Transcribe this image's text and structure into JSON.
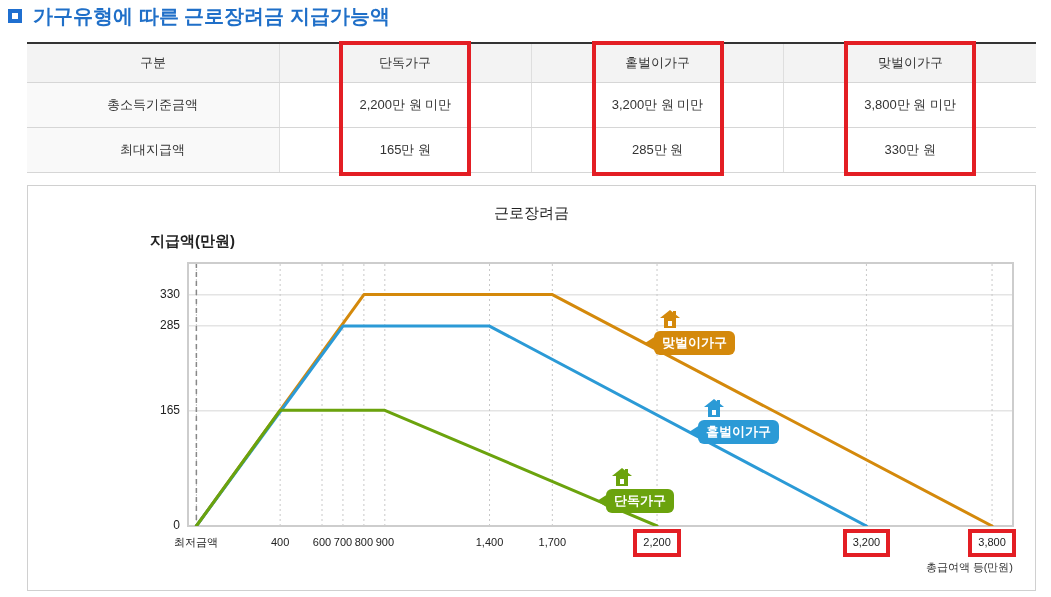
{
  "chart_data": [
    {
      "type": "other",
      "title": "가구유형에 따른 근로장려금 지급가능액",
      "legend_title": "구분",
      "categories": [
        "단독가구",
        "홑벌이가구",
        "맞벌이가구"
      ],
      "series": [
        {
          "name": "총소득기준금액",
          "values": [
            2200,
            3200,
            3800
          ],
          "value_labels": [
            "2,200만 원 미만",
            "3,200만 원 미만",
            "3,800만 원 미만"
          ]
        },
        {
          "name": "최대지급액",
          "values": [
            165,
            285,
            330
          ],
          "value_labels": [
            "165만 원",
            "285만 원",
            "330만 원"
          ]
        }
      ]
    },
    {
      "type": "line",
      "title": "근로장려금",
      "xlabel": "총급여액 등(만원)",
      "ylabel": "지급액(만원)",
      "xlim": [
        -40,
        3900
      ],
      "ylim": [
        0,
        375
      ],
      "xticks": [
        {
          "value": 0,
          "label": "최저금액"
        },
        400,
        600,
        700,
        800,
        900,
        {
          "value": 1400,
          "label": "1,400"
        },
        {
          "value": 1700,
          "label": "1,700"
        },
        {
          "value": 2200,
          "label": "2,200"
        },
        {
          "value": 3200,
          "label": "3,200"
        },
        {
          "value": 3800,
          "label": "3,800"
        }
      ],
      "yticks": [
        0,
        165,
        285,
        330
      ],
      "grid": true,
      "legend": "center",
      "marker": "none",
      "ref_lines": [
        {
          "axis": "x",
          "value": 0,
          "color": "#888888",
          "line_style": "dashed"
        }
      ],
      "series": [
        {
          "name": "단독가구",
          "color": "#6ba30d",
          "x": [
            0,
            400,
            900,
            2200
          ],
          "values": [
            0,
            165,
            165,
            0
          ]
        },
        {
          "name": "홑벌이가구",
          "color": "#2b9ad6",
          "x": [
            0,
            700,
            1400,
            3200
          ],
          "values": [
            0,
            285,
            285,
            0
          ]
        },
        {
          "name": "맞벌이가구",
          "color": "#d4890b",
          "x": [
            0,
            800,
            1700,
            3800
          ],
          "values": [
            0,
            330,
            330,
            0
          ]
        }
      ]
    }
  ]
}
